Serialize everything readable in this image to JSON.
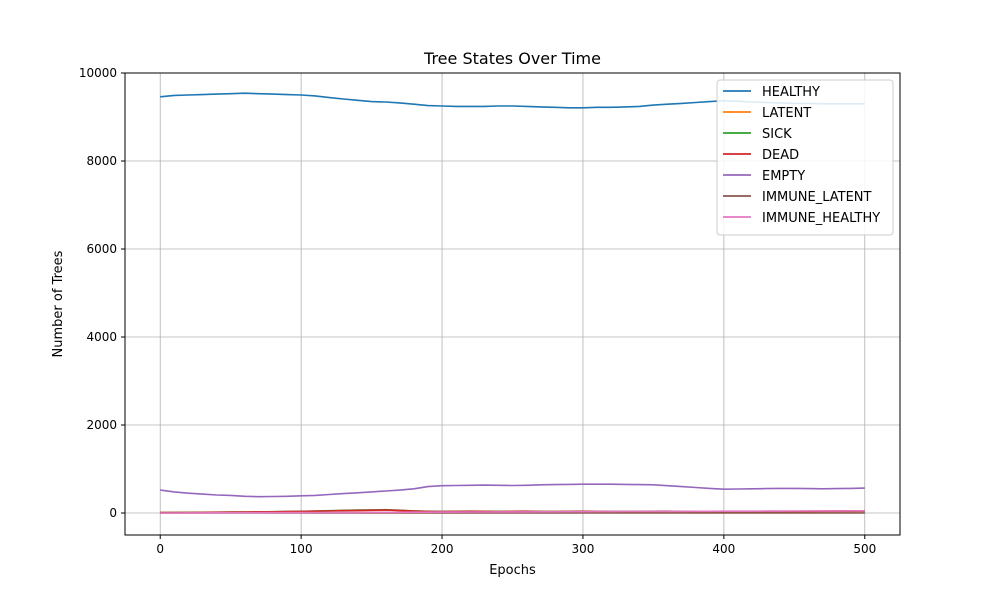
{
  "chart_data": {
    "type": "line",
    "title": "Tree States Over Time",
    "xlabel": "Epochs",
    "ylabel": "Number of Trees",
    "xlim": [
      -25,
      525
    ],
    "ylim": [
      -500,
      10000
    ],
    "xticks": [
      0,
      100,
      200,
      300,
      400,
      500
    ],
    "yticks": [
      0,
      2000,
      4000,
      6000,
      8000,
      10000
    ],
    "grid": true,
    "legend_position": "top-right",
    "x": [
      0,
      10,
      20,
      30,
      40,
      50,
      60,
      70,
      80,
      90,
      100,
      110,
      120,
      130,
      140,
      150,
      160,
      170,
      180,
      190,
      200,
      210,
      220,
      230,
      240,
      250,
      260,
      270,
      280,
      290,
      300,
      310,
      320,
      330,
      340,
      350,
      360,
      370,
      380,
      390,
      400,
      410,
      420,
      430,
      440,
      450,
      460,
      470,
      480,
      490,
      500
    ],
    "series": [
      {
        "name": "HEALTHY",
        "color": "#1f77b4",
        "values": [
          9460,
          9490,
          9500,
          9510,
          9520,
          9530,
          9540,
          9530,
          9520,
          9510,
          9500,
          9480,
          9440,
          9410,
          9380,
          9350,
          9340,
          9320,
          9290,
          9260,
          9250,
          9240,
          9240,
          9240,
          9250,
          9250,
          9240,
          9230,
          9220,
          9210,
          9210,
          9220,
          9220,
          9230,
          9240,
          9270,
          9290,
          9310,
          9330,
          9350,
          9370,
          9360,
          9340,
          9330,
          9320,
          9310,
          9310,
          9300,
          9300,
          9300,
          9300
        ]
      },
      {
        "name": "LATENT",
        "color": "#ff7f0e",
        "values": [
          5,
          8,
          10,
          12,
          14,
          16,
          18,
          22,
          26,
          30,
          34,
          40,
          48,
          56,
          60,
          62,
          65,
          55,
          40,
          30,
          28,
          30,
          32,
          30,
          28,
          30,
          32,
          28,
          26,
          30,
          32,
          30,
          28,
          26,
          28,
          30,
          32,
          28,
          25,
          26,
          28,
          30,
          28,
          26,
          28,
          30,
          32,
          34,
          36,
          38,
          40
        ]
      },
      {
        "name": "SICK",
        "color": "#2ca02c",
        "values": [
          10,
          12,
          14,
          16,
          18,
          20,
          22,
          26,
          30,
          34,
          38,
          44,
          52,
          60,
          66,
          70,
          75,
          62,
          48,
          38,
          36,
          38,
          40,
          38,
          36,
          38,
          40,
          36,
          34,
          38,
          40,
          38,
          36,
          34,
          36,
          38,
          40,
          36,
          33,
          34,
          36,
          38,
          36,
          34,
          36,
          38,
          40,
          42,
          44,
          46,
          48
        ]
      },
      {
        "name": "DEAD",
        "color": "#d62728",
        "values": [
          8,
          10,
          12,
          14,
          16,
          18,
          20,
          24,
          28,
          32,
          36,
          40,
          46,
          54,
          60,
          64,
          68,
          58,
          44,
          36,
          34,
          36,
          38,
          36,
          34,
          36,
          38,
          34,
          32,
          36,
          38,
          36,
          34,
          32,
          34,
          36,
          38,
          34,
          31,
          32,
          34,
          36,
          34,
          32,
          34,
          36,
          38,
          40,
          42,
          44,
          46
        ]
      },
      {
        "name": "EMPTY",
        "color": "#9467bd",
        "values": [
          520,
          480,
          450,
          430,
          410,
          400,
          380,
          370,
          375,
          380,
          390,
          400,
          420,
          440,
          460,
          480,
          500,
          520,
          550,
          600,
          620,
          625,
          630,
          635,
          630,
          625,
          630,
          640,
          645,
          650,
          655,
          655,
          655,
          650,
          645,
          640,
          620,
          600,
          580,
          560,
          540,
          545,
          550,
          555,
          560,
          560,
          555,
          550,
          555,
          560,
          565
        ]
      },
      {
        "name": "IMMUNE_LATENT",
        "color": "#8c564b",
        "values": [
          0,
          0,
          0,
          0,
          1,
          1,
          1,
          1,
          1,
          1,
          2,
          2,
          2,
          2,
          2,
          2,
          2,
          2,
          2,
          2,
          2,
          2,
          2,
          2,
          2,
          2,
          2,
          2,
          2,
          2,
          2,
          2,
          2,
          2,
          2,
          2,
          2,
          2,
          2,
          2,
          2,
          2,
          2,
          2,
          2,
          2,
          2,
          2,
          2,
          2,
          2
        ]
      },
      {
        "name": "IMMUNE_HEALTHY",
        "color": "#e377c2",
        "values": [
          0,
          1,
          2,
          3,
          4,
          5,
          6,
          7,
          8,
          9,
          10,
          11,
          12,
          13,
          14,
          15,
          16,
          17,
          18,
          19,
          20,
          21,
          22,
          23,
          24,
          25,
          26,
          27,
          28,
          29,
          30,
          31,
          32,
          33,
          34,
          35,
          36,
          37,
          38,
          39,
          40,
          41,
          42,
          43,
          44,
          45,
          46,
          47,
          48,
          49,
          50
        ]
      }
    ]
  }
}
